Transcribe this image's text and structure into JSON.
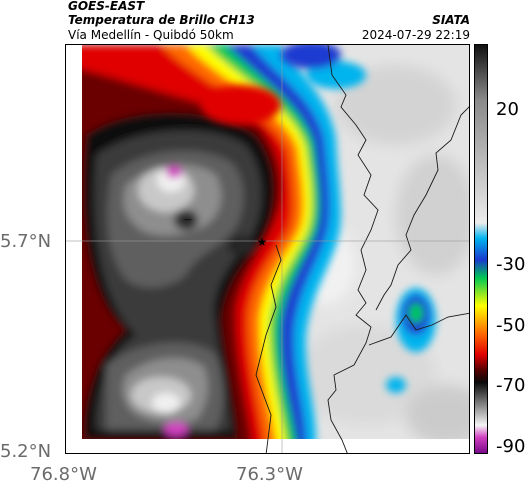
{
  "header": {
    "source": "GOES-EAST",
    "product": "Temperatura de Brillo CH13",
    "region": "Vía Medellín - Quibdó 50km",
    "agency": "SIATA",
    "datetime": "2024-07-29 22:19"
  },
  "axes": {
    "y_ticks": [
      "5.7°N",
      "5.2°N"
    ],
    "x_ticks": [
      "76.8°W",
      "76.3°W"
    ]
  },
  "colorbar": {
    "ticks": [
      "20",
      "-30",
      "-50",
      "-70",
      "-90"
    ],
    "range": [
      -95,
      38
    ],
    "stops": [
      {
        "value": 38,
        "color": "#111111"
      },
      {
        "value": 20,
        "color": "#8a8a8a"
      },
      {
        "value": -20,
        "color": "#ececec"
      },
      {
        "value": -25,
        "color": "#00b4ee"
      },
      {
        "value": -32,
        "color": "#1a3ad0"
      },
      {
        "value": -38,
        "color": "#00c853"
      },
      {
        "value": -47,
        "color": "#ffff00"
      },
      {
        "value": -56,
        "color": "#ff6a00"
      },
      {
        "value": -63,
        "color": "#e00000"
      },
      {
        "value": -68,
        "color": "#550000"
      },
      {
        "value": -72,
        "color": "#0a0a0a"
      },
      {
        "value": -80,
        "color": "#909090"
      },
      {
        "value": -86,
        "color": "#f4f4f4"
      },
      {
        "value": -90,
        "color": "#d040c0"
      },
      {
        "value": -95,
        "color": "#7a0a8a"
      }
    ]
  },
  "map": {
    "marker": "star-icon",
    "gridlines": true
  }
}
